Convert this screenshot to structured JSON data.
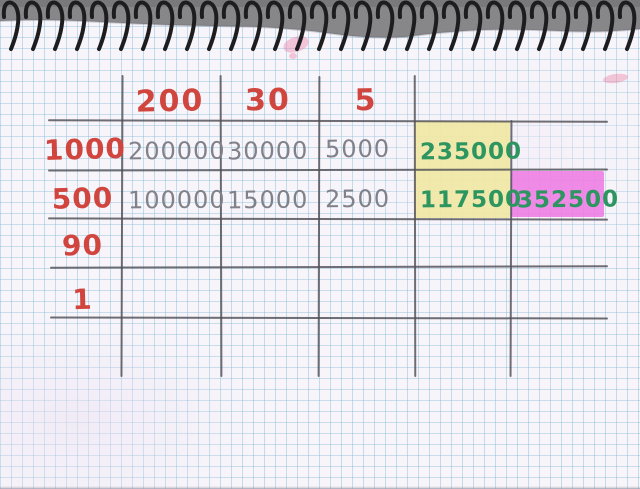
{
  "table": {
    "column_headers": [
      "200",
      "30",
      "5"
    ],
    "row_headers": [
      "1000",
      "500",
      "90",
      "1"
    ],
    "products": [
      [
        "200000",
        "30000",
        "5000"
      ],
      [
        "100000",
        "15000",
        "2500"
      ]
    ],
    "row_totals": [
      "235000",
      "117500"
    ],
    "grand_total": "352500"
  },
  "colors": {
    "red_pen": "#d1453f",
    "pencil_gray": "#81818a",
    "green_marker": "#2c9560",
    "yellow_highlight": "#efe8a2",
    "pink_highlight": "#ee7be4",
    "table_line": "#4f4f56",
    "grid_blue": "#7cb5d3"
  }
}
